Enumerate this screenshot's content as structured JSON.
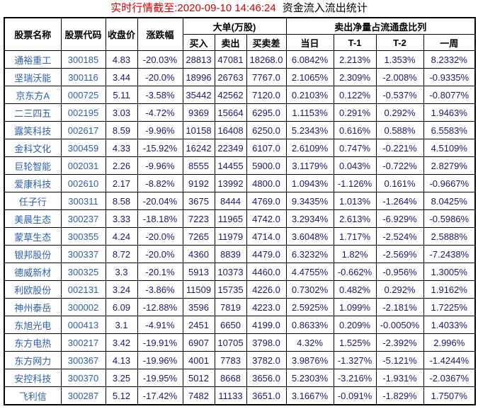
{
  "title": {
    "timestamp_part": "实时行情截至:2020-09-10 14:46:24",
    "stats_part": "资金流入流出统计"
  },
  "colors": {
    "title_red": "#d40000",
    "link_blue": "#2e5fae",
    "value_navy": "#191970",
    "header_text": "#000000",
    "border": "#000000",
    "background": "#ffffff"
  },
  "table": {
    "headers": {
      "stock_name": "股票名称",
      "stock_code": "股票代码",
      "close_price": "收盘价",
      "change_pct": "涨跌幅",
      "large_orders_group": "大单(万股)",
      "buy": "买入",
      "sell": "卖出",
      "buy_sell_diff": "买卖差",
      "net_sell_ratio_group": "卖出净量占流通盘比列",
      "day": "当日",
      "t1": "T-1",
      "t2": "T-2",
      "week": "一周"
    },
    "rows": [
      {
        "name": "通裕重工",
        "code": "300185",
        "close": "4.83",
        "change": "-20.03%",
        "buy": "28813",
        "sell": "47081",
        "diff": "18268.0",
        "day": "6.0842%",
        "t1": "2.213%",
        "t2": "1.353%",
        "week": "8.2332%"
      },
      {
        "name": "坚瑞沃能",
        "code": "300116",
        "close": "3.44",
        "change": "-20.0%",
        "buy": "18996",
        "sell": "26763",
        "diff": "7767.0",
        "day": "2.1065%",
        "t1": "2.309%",
        "t2": "-2.008%",
        "week": "-0.9335%"
      },
      {
        "name": "京东方A",
        "code": "000725",
        "close": "5.11",
        "change": "-3.58%",
        "buy": "35442",
        "sell": "42562",
        "diff": "7120.0",
        "day": "0.2103%",
        "t1": "0.122%",
        "t2": "-0.537%",
        "week": "-0.8077%"
      },
      {
        "name": "二三四五",
        "code": "002195",
        "close": "3.03",
        "change": "-4.72%",
        "buy": "9369",
        "sell": "15664",
        "diff": "6295.0",
        "day": "1.1153%",
        "t1": "0.291%",
        "t2": "0.292%",
        "week": "1.9463%"
      },
      {
        "name": "露笑科技",
        "code": "002617",
        "close": "8.59",
        "change": "-9.96%",
        "buy": "10158",
        "sell": "16408",
        "diff": "6250.0",
        "day": "5.2343%",
        "t1": "0.616%",
        "t2": "0.588%",
        "week": "6.5583%"
      },
      {
        "name": "金科文化",
        "code": "300459",
        "close": "4.33",
        "change": "-15.92%",
        "buy": "16242",
        "sell": "22349",
        "diff": "6107.0",
        "day": "2.6109%",
        "t1": "0.747%",
        "t2": "-0.221%",
        "week": "4.5109%"
      },
      {
        "name": "巨轮智能",
        "code": "002031",
        "close": "2.26",
        "change": "-9.96%",
        "buy": "8555",
        "sell": "14455",
        "diff": "5900.0",
        "day": "3.1179%",
        "t1": "0.043%",
        "t2": "-0.722%",
        "week": "2.8279%"
      },
      {
        "name": "爱康科技",
        "code": "002610",
        "close": "2.17",
        "change": "-8.82%",
        "buy": "9192",
        "sell": "13992",
        "diff": "4800.0",
        "day": "1.0943%",
        "t1": "-1.126%",
        "t2": "0.161%",
        "week": "-0.9667%"
      },
      {
        "name": "任子行",
        "code": "300311",
        "close": "8.58",
        "change": "-20.04%",
        "buy": "3675",
        "sell": "8444",
        "diff": "4769.0",
        "day": "9.3435%",
        "t1": "1.013%",
        "t2": "-1.264%",
        "week": "8.0425%"
      },
      {
        "name": "美晨生态",
        "code": "300237",
        "close": "3.33",
        "change": "-18.18%",
        "buy": "7223",
        "sell": "11965",
        "diff": "4742.0",
        "day": "3.2934%",
        "t1": "2.613%",
        "t2": "-6.929%",
        "week": "-0.5986%"
      },
      {
        "name": "蒙草生态",
        "code": "300355",
        "close": "4.24",
        "change": "-20.0%",
        "buy": "7265",
        "sell": "11979",
        "diff": "4714.0",
        "day": "3.6048%",
        "t1": "1.717%",
        "t2": "-2.524%",
        "week": "2.5888%"
      },
      {
        "name": "银邦股份",
        "code": "300337",
        "close": "8.72",
        "change": "-20.0%",
        "buy": "4360",
        "sell": "8839",
        "diff": "4479.0",
        "day": "6.3232%",
        "t1": "1.82%",
        "t2": "-2.569%",
        "week": "-7.2438%"
      },
      {
        "name": "德威新材",
        "code": "300325",
        "close": "3.3",
        "change": "-20.1%",
        "buy": "5913",
        "sell": "10373",
        "diff": "4460.0",
        "day": "4.4755%",
        "t1": "-0.662%",
        "t2": "-0.956%",
        "week": "1.3005%"
      },
      {
        "name": "利欧股份",
        "code": "002131",
        "close": "3.24",
        "change": "-3.86%",
        "buy": "11509",
        "sell": "15735",
        "diff": "4226.0",
        "day": "0.7302%",
        "t1": "0.482%",
        "t2": "0.292%",
        "week": "1.9162%"
      },
      {
        "name": "神州泰岳",
        "code": "300002",
        "close": "6.09",
        "change": "-12.88%",
        "buy": "3596",
        "sell": "7819",
        "diff": "4223.0",
        "day": "2.5925%",
        "t1": "1.099%",
        "t2": "-2.181%",
        "week": "1.7225%"
      },
      {
        "name": "东旭光电",
        "code": "000413",
        "close": "3.1",
        "change": "-4.91%",
        "buy": "2451",
        "sell": "6650",
        "diff": "4199.0",
        "day": "0.8633%",
        "t1": "0.209%",
        "t2": "-0.0050%",
        "week": "1.4033%"
      },
      {
        "name": "东方电热",
        "code": "300217",
        "close": "3.42",
        "change": "-19.91%",
        "buy": "6907",
        "sell": "10705",
        "diff": "3798.0",
        "day": "4.32%",
        "t1": "1.525%",
        "t2": "-2.392%",
        "week": "2.996%"
      },
      {
        "name": "东方网力",
        "code": "300367",
        "close": "4.13",
        "change": "-19.96%",
        "buy": "4001",
        "sell": "7783",
        "diff": "3782.0",
        "day": "3.9876%",
        "t1": "-1.327%",
        "t2": "-5.121%",
        "week": "-1.4244%"
      },
      {
        "name": "安控科技",
        "code": "300370",
        "close": "3.25",
        "change": "-19.95%",
        "buy": "5012",
        "sell": "8668",
        "diff": "3656.0",
        "day": "5.2303%",
        "t1": "-3.216%",
        "t2": "-1.931%",
        "week": "-2.0367%"
      },
      {
        "name": "飞利信",
        "code": "300287",
        "close": "5.12",
        "change": "-17.42%",
        "buy": "7482",
        "sell": "11133",
        "diff": "3651.0",
        "day": "3.1667%",
        "t1": "-0.091%",
        "t2": "-1.829%",
        "week": "1.7507%"
      }
    ]
  }
}
